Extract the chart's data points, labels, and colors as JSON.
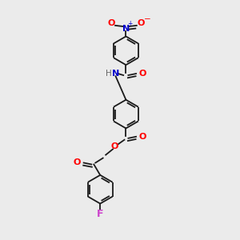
{
  "bg": "#ebebeb",
  "bond_color": "#1a1a1a",
  "O_color": "#ff0000",
  "N_color": "#0000cc",
  "F_color": "#cc44cc",
  "H_color": "#666666",
  "ring_r": 0.72,
  "lw": 1.3,
  "fs": 7.5,
  "xlim": [
    0,
    8
  ],
  "ylim": [
    0,
    12
  ]
}
